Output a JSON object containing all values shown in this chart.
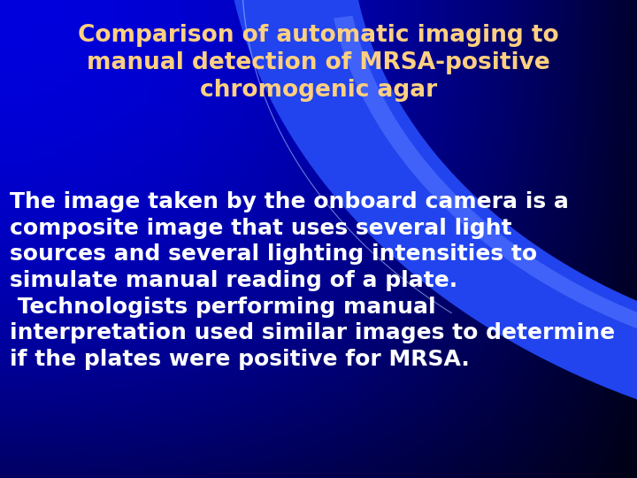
{
  "title_line1": "Comparison of automatic imaging to",
  "title_line2": "manual detection of MRSA-positive",
  "title_line3": "chromogenic agar",
  "title_color": "#FFD080",
  "body_text": "The image taken by the onboard camera is a\ncomposite image that uses several light\nsources and several lighting intensities to\nsimulate manual reading of a plate.\n Technologists performing manual\ninterpretation used similar images to determine\nif the plates were positive for MRSA.",
  "body_text_color": "#FFFFFF",
  "title_fontsize": 19,
  "body_fontsize": 18,
  "figsize": [
    7.2,
    5.4
  ],
  "dpi": 100
}
